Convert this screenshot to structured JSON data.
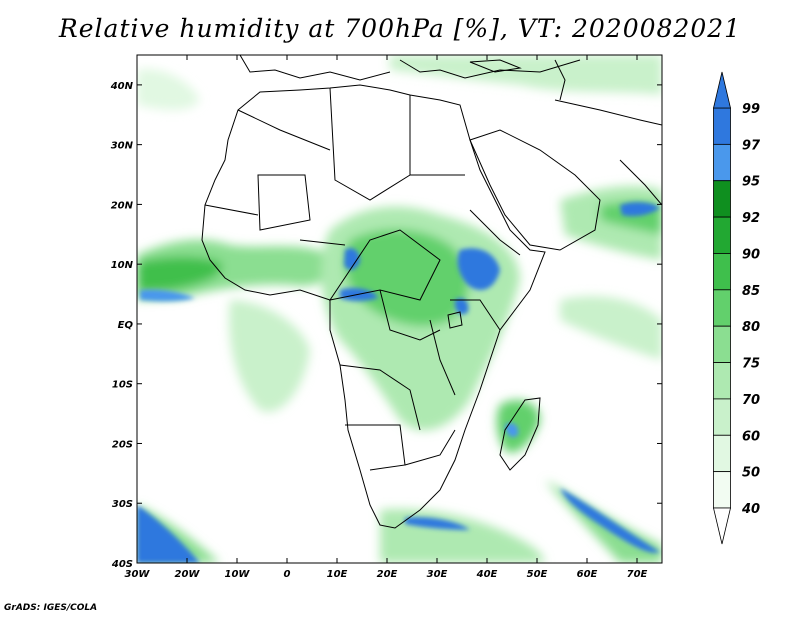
{
  "title": "Relative humidity at 700hPa [%], VT: 2020082021",
  "credit": "GrADS: IGES/COLA",
  "map": {
    "lon_range": [
      -30,
      75
    ],
    "lat_range": [
      -40,
      45
    ],
    "lon_labels": [
      "30W",
      "20W",
      "10W",
      "0",
      "10E",
      "20E",
      "30E",
      "40E",
      "50E",
      "60E",
      "70E"
    ],
    "lat_labels": [
      "40N",
      "30N",
      "20N",
      "10N",
      "EQ",
      "10S",
      "20S",
      "30S",
      "40S"
    ]
  },
  "colorbar": {
    "levels": [
      "99",
      "97",
      "95",
      "92",
      "90",
      "85",
      "80",
      "75",
      "70",
      "60",
      "50",
      "40"
    ],
    "colors": {
      "97-99": "#2f78de",
      "95-97": "#4a98ec",
      "92-95": "#0f8f1f",
      "90-92": "#22a832",
      "85-90": "#3fbf4c",
      "80-85": "#62d06c",
      "75-80": "#8bde91",
      "70-75": "#aee9b1",
      "60-70": "#c9f1cb",
      "50-60": "#e1f8e2",
      "40-50": "#f2fcf2"
    }
  }
}
